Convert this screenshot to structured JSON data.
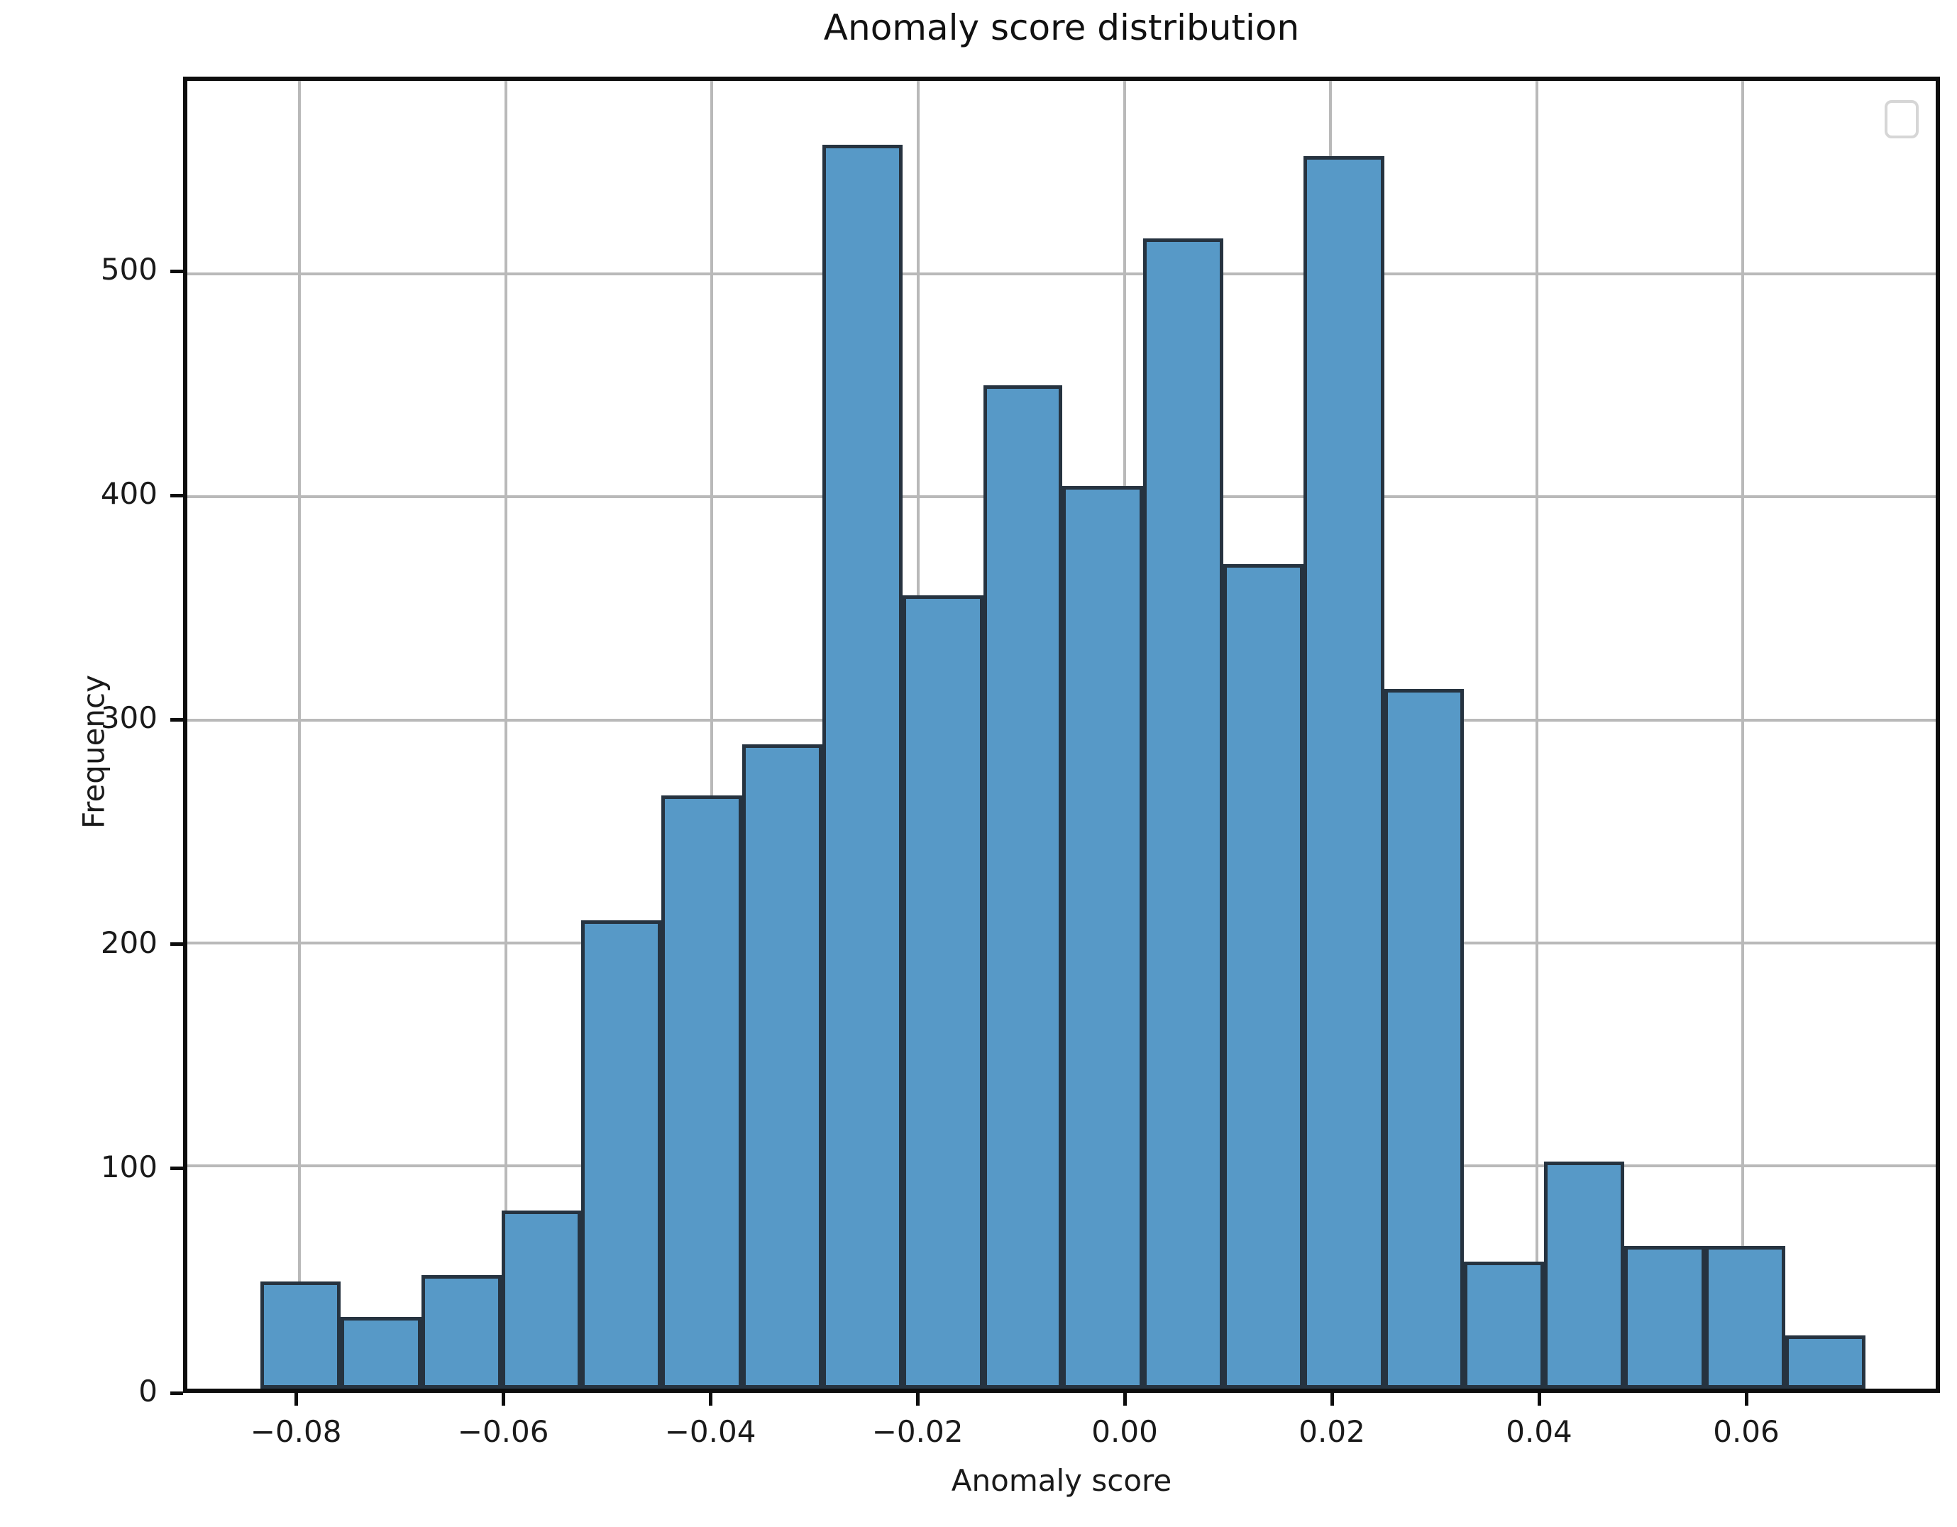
{
  "chart_data": {
    "type": "bar",
    "subtype": "histogram",
    "title": "Anomaly score distribution",
    "xlabel": "Anomaly score",
    "ylabel": "Frequency",
    "bin_edges": [
      -0.0838,
      -0.076,
      -0.0682,
      -0.0604,
      -0.0527,
      -0.0449,
      -0.0371,
      -0.0293,
      -0.0215,
      -0.0137,
      -0.006,
      0.0018,
      0.0096,
      0.0174,
      0.0252,
      0.0329,
      0.0407,
      0.0485,
      0.0563,
      0.0641,
      0.0719
    ],
    "values": [
      48,
      32,
      51,
      80,
      210,
      266,
      289,
      558,
      356,
      450,
      405,
      516,
      370,
      553,
      314,
      57,
      102,
      64,
      64,
      24
    ],
    "xlim": [
      -0.0909,
      0.0787
    ],
    "ylim": [
      0,
      586.7
    ],
    "x_tick_values": [
      -0.08,
      -0.06,
      -0.04,
      -0.02,
      0.0,
      0.02,
      0.04,
      0.06
    ],
    "x_tick_labels": [
      "−0.08",
      "−0.06",
      "−0.04",
      "−0.02",
      "0.00",
      "0.02",
      "0.04",
      "0.06"
    ],
    "y_tick_values": [
      0,
      100,
      200,
      300,
      400,
      500
    ],
    "y_tick_labels": [
      "0",
      "100",
      "200",
      "300",
      "400",
      "500"
    ],
    "grid": true,
    "legend": {
      "visible": true,
      "entries": [],
      "position": "upper right"
    },
    "colors": {
      "bar_fill": "#5799C7",
      "bar_edge": "#263340",
      "grid": "#b9b9b9",
      "spine": "#0d0d0d",
      "text": "#1a1a1a",
      "legend_border": "#d6d6d6"
    }
  }
}
